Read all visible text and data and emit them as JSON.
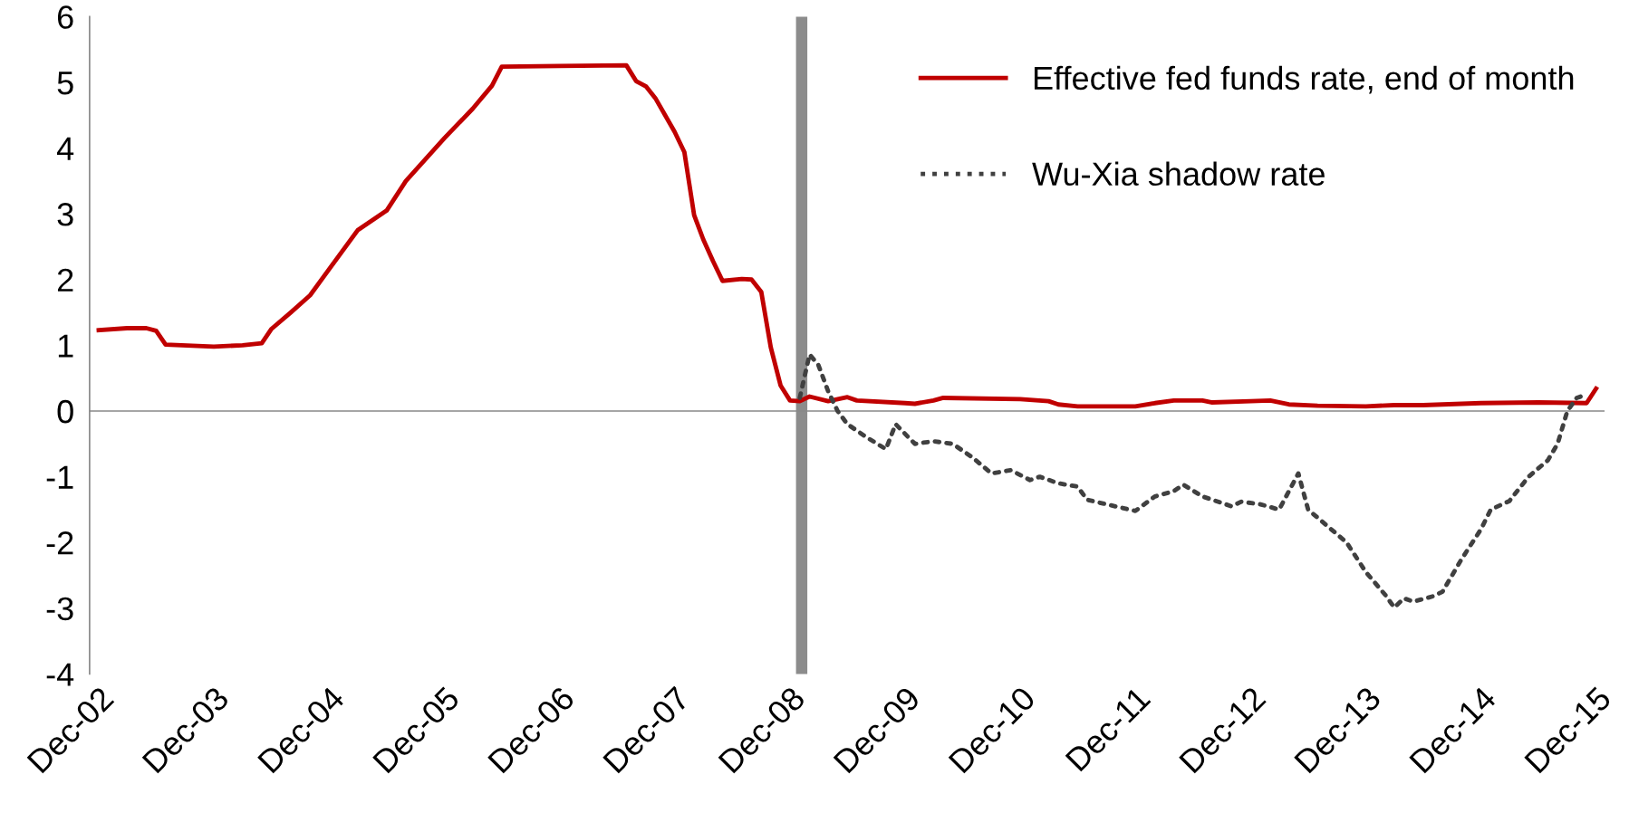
{
  "chart_data": {
    "type": "line",
    "series": [
      {
        "name": "Effective fed funds rate, end of month",
        "color": "#c00000",
        "line_style": "solid",
        "x": [
          "2002-12",
          "2003-03",
          "2003-05",
          "2003-06",
          "2003-07",
          "2003-12",
          "2004-03",
          "2004-05",
          "2004-06",
          "2004-08",
          "2004-10",
          "2004-12",
          "2005-03",
          "2005-06",
          "2005-08",
          "2005-12",
          "2006-03",
          "2006-05",
          "2006-06",
          "2006-12",
          "2007-07",
          "2007-08",
          "2007-09",
          "2007-10",
          "2007-12",
          "2008-01",
          "2008-02",
          "2008-03",
          "2008-04",
          "2008-05",
          "2008-07",
          "2008-08",
          "2008-09",
          "2008-10",
          "2008-11",
          "2008-12",
          "2009-01",
          "2009-02",
          "2009-04",
          "2009-06",
          "2009-07",
          "2009-12",
          "2010-01",
          "2010-03",
          "2010-04",
          "2010-12",
          "2011-03",
          "2011-04",
          "2011-06",
          "2011-12",
          "2012-02",
          "2012-04",
          "2012-07",
          "2012-08",
          "2012-12",
          "2013-02",
          "2013-04",
          "2013-07",
          "2013-12",
          "2014-03",
          "2014-06",
          "2014-12",
          "2015-06",
          "2015-11",
          "2015-12"
        ],
        "values": [
          1.23,
          1.26,
          1.26,
          1.22,
          1.01,
          0.98,
          1.0,
          1.03,
          1.25,
          1.5,
          1.76,
          2.16,
          2.75,
          3.05,
          3.5,
          4.15,
          4.6,
          4.95,
          5.24,
          5.25,
          5.26,
          5.02,
          4.94,
          4.76,
          4.25,
          3.94,
          2.98,
          2.61,
          2.28,
          1.98,
          2.01,
          2.0,
          1.81,
          0.97,
          0.39,
          0.16,
          0.15,
          0.22,
          0.15,
          0.21,
          0.16,
          0.12,
          0.11,
          0.16,
          0.2,
          0.18,
          0.15,
          0.1,
          0.07,
          0.07,
          0.12,
          0.16,
          0.16,
          0.13,
          0.15,
          0.16,
          0.1,
          0.08,
          0.07,
          0.09,
          0.09,
          0.12,
          0.13,
          0.12,
          0.34
        ]
      },
      {
        "name": "Wu-Xia shadow rate",
        "color": "#404040",
        "line_style": "dotted",
        "x": [
          "2009-01",
          "2009-02",
          "2009-03",
          "2009-04",
          "2009-05",
          "2009-06",
          "2009-08",
          "2009-10",
          "2009-11",
          "2010-01",
          "2010-03",
          "2010-05",
          "2010-07",
          "2010-09",
          "2010-11",
          "2011-01",
          "2011-02",
          "2011-04",
          "2011-06",
          "2011-07",
          "2011-09",
          "2011-12",
          "2012-02",
          "2012-04",
          "2012-05",
          "2012-07",
          "2012-09",
          "2012-10",
          "2012-11",
          "2013-01",
          "2013-03",
          "2013-05",
          "2013-06",
          "2013-08",
          "2013-10",
          "2013-12",
          "2014-02",
          "2014-03",
          "2014-04",
          "2014-05",
          "2014-07",
          "2014-08",
          "2014-10",
          "2014-12",
          "2015-01",
          "2015-03",
          "2015-05",
          "2015-07",
          "2015-08",
          "2015-09",
          "2015-10",
          "2015-11"
        ],
        "values": [
          0.2,
          0.86,
          0.7,
          0.3,
          0.0,
          -0.2,
          -0.4,
          -0.58,
          -0.2,
          -0.5,
          -0.46,
          -0.5,
          -0.7,
          -0.95,
          -0.9,
          -1.05,
          -1.0,
          -1.1,
          -1.15,
          -1.35,
          -1.42,
          -1.52,
          -1.3,
          -1.22,
          -1.12,
          -1.3,
          -1.4,
          -1.45,
          -1.38,
          -1.42,
          -1.5,
          -0.95,
          -1.5,
          -1.75,
          -2.0,
          -2.45,
          -2.8,
          -2.99,
          -2.85,
          -2.9,
          -2.82,
          -2.75,
          -2.25,
          -1.8,
          -1.5,
          -1.37,
          -1.0,
          -0.75,
          -0.5,
          0.0,
          0.2,
          0.25
        ]
      }
    ],
    "ylim": [
      -4,
      6
    ],
    "yticks": [
      -4,
      -3,
      -2,
      -1,
      0,
      1,
      2,
      3,
      4,
      5,
      6
    ],
    "xlim": [
      "2002-11-15",
      "2016-01-10"
    ],
    "xticks": [
      {
        "value": "2002-12",
        "label": "Dec-02"
      },
      {
        "value": "2003-12",
        "label": "Dec-03"
      },
      {
        "value": "2004-12",
        "label": "Dec-04"
      },
      {
        "value": "2005-12",
        "label": "Dec-05"
      },
      {
        "value": "2006-12",
        "label": "Dec-06"
      },
      {
        "value": "2007-12",
        "label": "Dec-07"
      },
      {
        "value": "2008-12",
        "label": "Dec-08"
      },
      {
        "value": "2009-12",
        "label": "Dec-09"
      },
      {
        "value": "2010-12",
        "label": "Dec-10"
      },
      {
        "value": "2011-12",
        "label": "Dec-11"
      },
      {
        "value": "2012-12",
        "label": "Dec-12"
      },
      {
        "value": "2013-12",
        "label": "Dec-13"
      },
      {
        "value": "2014-12",
        "label": "Dec-14"
      },
      {
        "value": "2015-12",
        "label": "Dec-15"
      }
    ],
    "ref_lines": [
      {
        "axis": "x",
        "value": "2009-01-20",
        "color": "#8c8c8c"
      },
      {
        "axis": "y",
        "value": 0,
        "color": "#888888"
      }
    ],
    "grid": false,
    "legend": "top right",
    "marker": "none"
  }
}
